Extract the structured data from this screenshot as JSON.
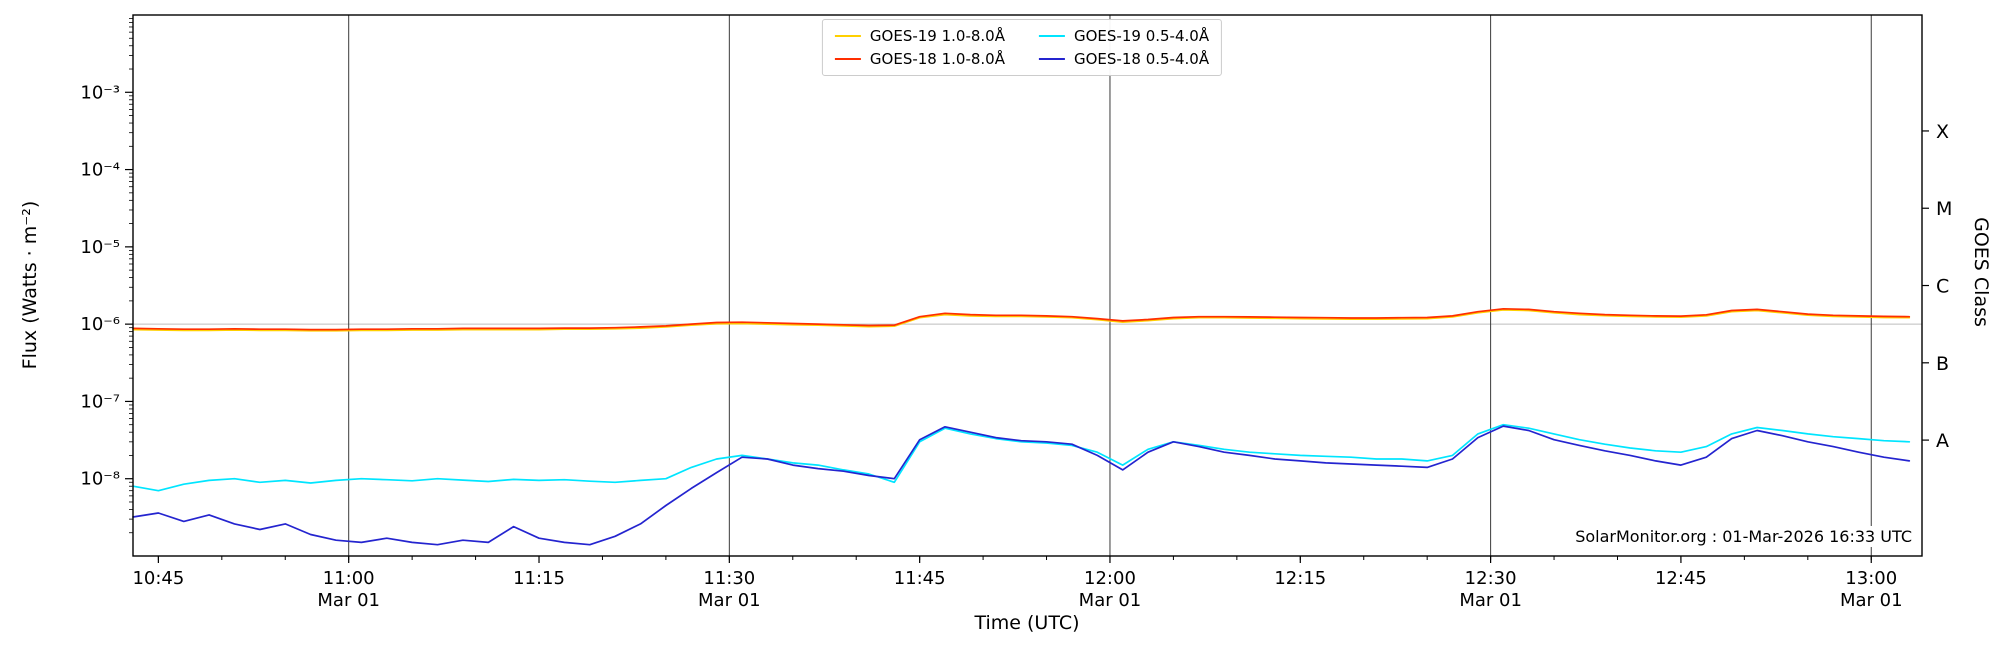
{
  "watermark": "SolarMonitor.org : 01-Mar-2026 16:33 UTC",
  "axes": {
    "xlabel": "Time (UTC)",
    "ylabel": "Flux (Watts · m⁻²)",
    "ylabel_right": "GOES Class"
  },
  "chart_data": {
    "type": "line",
    "yscale": "log",
    "ylim": [
      1e-09,
      0.01
    ],
    "xlim": [
      "10:43",
      "13:04"
    ],
    "gridline_flux": 1e-06,
    "x_ticks": [
      {
        "label": "10:45",
        "date": ""
      },
      {
        "label": "11:00",
        "date": "Mar 01"
      },
      {
        "label": "11:15",
        "date": ""
      },
      {
        "label": "11:30",
        "date": "Mar 01"
      },
      {
        "label": "11:45",
        "date": ""
      },
      {
        "label": "12:00",
        "date": "Mar 01"
      },
      {
        "label": "12:15",
        "date": ""
      },
      {
        "label": "12:30",
        "date": "Mar 01"
      },
      {
        "label": "12:45",
        "date": ""
      },
      {
        "label": "13:00",
        "date": "Mar 01"
      }
    ],
    "y_ticks": [
      {
        "exp": -3,
        "label": "10⁻³"
      },
      {
        "exp": -4,
        "label": "10⁻⁴"
      },
      {
        "exp": -5,
        "label": "10⁻⁵"
      },
      {
        "exp": -6,
        "label": "10⁻⁶"
      },
      {
        "exp": -7,
        "label": "10⁻⁷"
      },
      {
        "exp": -8,
        "label": "10⁻⁸"
      }
    ],
    "goes_class_ticks": [
      {
        "label": "X",
        "flux": 0.000316
      },
      {
        "label": "M",
        "flux": 3.16e-05
      },
      {
        "label": "C",
        "flux": 3.16e-06
      },
      {
        "label": "B",
        "flux": 3.16e-07
      },
      {
        "label": "A",
        "flux": 3.16e-08
      }
    ],
    "x_time_utc": [
      "10:43",
      "10:45",
      "10:47",
      "10:49",
      "10:51",
      "10:53",
      "10:55",
      "10:57",
      "10:59",
      "11:01",
      "11:03",
      "11:05",
      "11:07",
      "11:09",
      "11:11",
      "11:13",
      "11:15",
      "11:17",
      "11:19",
      "11:21",
      "11:23",
      "11:25",
      "11:27",
      "11:29",
      "11:31",
      "11:33",
      "11:35",
      "11:37",
      "11:39",
      "11:41",
      "11:43",
      "11:45",
      "11:47",
      "11:49",
      "11:51",
      "11:53",
      "11:55",
      "11:57",
      "11:59",
      "12:01",
      "12:03",
      "12:05",
      "12:07",
      "12:09",
      "12:11",
      "12:13",
      "12:15",
      "12:17",
      "12:19",
      "12:21",
      "12:23",
      "12:25",
      "12:27",
      "12:29",
      "12:31",
      "12:33",
      "12:35",
      "12:37",
      "12:39",
      "12:41",
      "12:43",
      "12:45",
      "12:47",
      "12:49",
      "12:51",
      "12:53",
      "12:55",
      "12:57",
      "12:59",
      "13:01",
      "13:03"
    ],
    "x_date": "Mar 01",
    "series": [
      {
        "name": "GOES-19 1.0-8.0Å",
        "color": "#ffd000",
        "values": [
          8.5e-07,
          8.4e-07,
          8.3e-07,
          8.3e-07,
          8.4e-07,
          8.3e-07,
          8.3e-07,
          8.2e-07,
          8.2e-07,
          8.3e-07,
          8.3e-07,
          8.4e-07,
          8.4e-07,
          8.5e-07,
          8.5e-07,
          8.5e-07,
          8.5e-07,
          8.6e-07,
          8.6e-07,
          8.7e-07,
          8.9e-07,
          9.2e-07,
          9.7e-07,
          1.01e-06,
          1.02e-06,
          1e-06,
          9.8e-07,
          9.7e-07,
          9.5e-07,
          9.3e-07,
          9.4e-07,
          1.21e-06,
          1.33e-06,
          1.28e-06,
          1.26e-06,
          1.26e-06,
          1.24e-06,
          1.21e-06,
          1.14e-06,
          1.06e-06,
          1.11e-06,
          1.18e-06,
          1.21e-06,
          1.21e-06,
          1.2e-06,
          1.19e-06,
          1.18e-06,
          1.17e-06,
          1.16e-06,
          1.16e-06,
          1.17e-06,
          1.18e-06,
          1.24e-06,
          1.4e-06,
          1.53e-06,
          1.5e-06,
          1.4e-06,
          1.33e-06,
          1.29e-06,
          1.26e-06,
          1.24e-06,
          1.23e-06,
          1.28e-06,
          1.45e-06,
          1.5e-06,
          1.4e-06,
          1.31e-06,
          1.26e-06,
          1.24e-06,
          1.22e-06,
          1.21e-06
        ]
      },
      {
        "name": "GOES-18 1.0-8.0Å",
        "color": "#ff2e00",
        "values": [
          8.8e-07,
          8.7e-07,
          8.6e-07,
          8.6e-07,
          8.7e-07,
          8.6e-07,
          8.6e-07,
          8.5e-07,
          8.5e-07,
          8.6e-07,
          8.6e-07,
          8.7e-07,
          8.7e-07,
          8.8e-07,
          8.8e-07,
          8.8e-07,
          8.8e-07,
          8.9e-07,
          8.9e-07,
          9e-07,
          9.2e-07,
          9.5e-07,
          1e-06,
          1.05e-06,
          1.06e-06,
          1.04e-06,
          1.02e-06,
          1e-06,
          9.8e-07,
          9.6e-07,
          9.7e-07,
          1.25e-06,
          1.38e-06,
          1.33e-06,
          1.3e-06,
          1.3e-06,
          1.28e-06,
          1.25e-06,
          1.18e-06,
          1.1e-06,
          1.15e-06,
          1.22e-06,
          1.25e-06,
          1.25e-06,
          1.24e-06,
          1.23e-06,
          1.22e-06,
          1.21e-06,
          1.2e-06,
          1.2e-06,
          1.21e-06,
          1.22e-06,
          1.28e-06,
          1.45e-06,
          1.58e-06,
          1.55e-06,
          1.45e-06,
          1.38e-06,
          1.33e-06,
          1.3e-06,
          1.28e-06,
          1.27e-06,
          1.32e-06,
          1.5e-06,
          1.55e-06,
          1.45e-06,
          1.35e-06,
          1.3e-06,
          1.28e-06,
          1.26e-06,
          1.25e-06
        ]
      },
      {
        "name": "GOES-19 0.5-4.0Å",
        "color": "#00e5ff",
        "values": [
          8e-09,
          7e-09,
          8.5e-09,
          9.5e-09,
          1e-08,
          9e-09,
          9.5e-09,
          8.8e-09,
          9.5e-09,
          1e-08,
          9.7e-09,
          9.4e-09,
          1e-08,
          9.6e-09,
          9.2e-09,
          9.8e-09,
          9.5e-09,
          9.7e-09,
          9.3e-09,
          9e-09,
          9.5e-09,
          1e-08,
          1.4e-08,
          1.8e-08,
          2e-08,
          1.8e-08,
          1.6e-08,
          1.5e-08,
          1.3e-08,
          1.15e-08,
          9e-09,
          3e-08,
          4.5e-08,
          3.8e-08,
          3.3e-08,
          3e-08,
          2.9e-08,
          2.7e-08,
          2.2e-08,
          1.5e-08,
          2.4e-08,
          3e-08,
          2.7e-08,
          2.4e-08,
          2.2e-08,
          2.1e-08,
          2e-08,
          1.95e-08,
          1.9e-08,
          1.8e-08,
          1.8e-08,
          1.7e-08,
          2e-08,
          3.8e-08,
          5e-08,
          4.5e-08,
          3.8e-08,
          3.2e-08,
          2.8e-08,
          2.5e-08,
          2.3e-08,
          2.2e-08,
          2.6e-08,
          3.8e-08,
          4.6e-08,
          4.2e-08,
          3.8e-08,
          3.5e-08,
          3.3e-08,
          3.1e-08,
          3e-08
        ]
      },
      {
        "name": "GOES-18 0.5-4.0Å",
        "color": "#2424cf",
        "values": [
          3.2e-09,
          3.6e-09,
          2.8e-09,
          3.4e-09,
          2.6e-09,
          2.2e-09,
          2.6e-09,
          1.9e-09,
          1.6e-09,
          1.5e-09,
          1.7e-09,
          1.5e-09,
          1.4e-09,
          1.6e-09,
          1.5e-09,
          2.4e-09,
          1.7e-09,
          1.5e-09,
          1.4e-09,
          1.8e-09,
          2.6e-09,
          4.5e-09,
          7.5e-09,
          1.2e-08,
          1.9e-08,
          1.8e-08,
          1.5e-08,
          1.35e-08,
          1.25e-08,
          1.1e-08,
          1e-08,
          3.2e-08,
          4.7e-08,
          4e-08,
          3.4e-08,
          3.1e-08,
          3e-08,
          2.8e-08,
          2e-08,
          1.3e-08,
          2.2e-08,
          3e-08,
          2.6e-08,
          2.2e-08,
          2e-08,
          1.8e-08,
          1.7e-08,
          1.6e-08,
          1.55e-08,
          1.5e-08,
          1.45e-08,
          1.4e-08,
          1.8e-08,
          3.4e-08,
          4.8e-08,
          4.2e-08,
          3.2e-08,
          2.7e-08,
          2.3e-08,
          2e-08,
          1.7e-08,
          1.5e-08,
          1.9e-08,
          3.3e-08,
          4.2e-08,
          3.6e-08,
          3e-08,
          2.6e-08,
          2.2e-08,
          1.9e-08,
          1.7e-08
        ]
      }
    ],
    "legend_position": "top-center"
  }
}
